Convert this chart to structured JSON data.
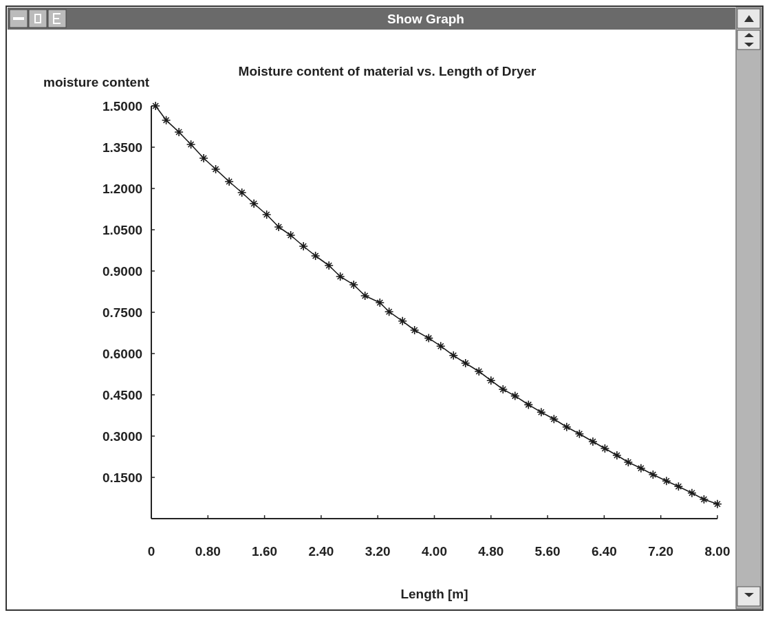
{
  "chart_data": {
    "type": "line",
    "title": "Moisture content of material vs. Length of Dryer",
    "xlabel": "Length [m]",
    "ylabel": "moisture content",
    "annotations": [
      "Show Graph"
    ],
    "x": [
      0.06,
      0.21,
      0.39,
      0.56,
      0.74,
      0.91,
      1.1,
      1.28,
      1.45,
      1.63,
      1.8,
      1.97,
      2.15,
      2.32,
      2.51,
      2.67,
      2.86,
      3.02,
      3.23,
      3.36,
      3.55,
      3.72,
      3.92,
      4.09,
      4.27,
      4.44,
      4.63,
      4.8,
      4.97,
      5.14,
      5.33,
      5.51,
      5.69,
      5.87,
      6.05,
      6.24,
      6.41,
      6.58,
      6.74,
      6.92,
      7.09,
      7.28,
      7.45,
      7.64,
      7.81,
      8.0
    ],
    "series": [
      {
        "color": "#1a1a1a",
        "values": [
          1.5,
          1.448,
          1.405,
          1.36,
          1.31,
          1.27,
          1.225,
          1.185,
          1.145,
          1.105,
          1.06,
          1.03,
          0.99,
          0.955,
          0.92,
          0.88,
          0.85,
          0.81,
          0.785,
          0.752,
          0.718,
          0.685,
          0.656,
          0.627,
          0.593,
          0.565,
          0.535,
          0.502,
          0.47,
          0.446,
          0.414,
          0.387,
          0.362,
          0.333,
          0.308,
          0.28,
          0.255,
          0.23,
          0.205,
          0.183,
          0.16,
          0.137,
          0.117,
          0.093,
          0.07,
          0.053
        ]
      }
    ],
    "xlim": [
      0,
      8
    ],
    "xticks": [
      {
        "value": 0,
        "label": "0"
      },
      {
        "value": 0.8,
        "label": "0.80"
      },
      {
        "value": 1.6,
        "label": "1.60"
      },
      {
        "value": 2.4,
        "label": "2.40"
      },
      {
        "value": 3.2,
        "label": "3.20"
      },
      {
        "value": 4,
        "label": "4.00"
      },
      {
        "value": 4.8,
        "label": "4.80"
      },
      {
        "value": 5.6,
        "label": "5.60"
      },
      {
        "value": 6.4,
        "label": "6.40"
      },
      {
        "value": 7.2,
        "label": "7.20"
      },
      {
        "value": 8,
        "label": "8.00"
      }
    ],
    "ylim": [
      0,
      1.5
    ],
    "yticks": [
      {
        "value": 0.15,
        "label": "0.1500"
      },
      {
        "value": 0.3,
        "label": "0.3000"
      },
      {
        "value": 0.45,
        "label": "0.4500"
      },
      {
        "value": 0.6,
        "label": "0.6000"
      },
      {
        "value": 0.75,
        "label": "0.7500"
      },
      {
        "value": 0.9,
        "label": "0.9000"
      },
      {
        "value": 1.05,
        "label": "1.0500"
      },
      {
        "value": 1.2,
        "label": "1.2000"
      },
      {
        "value": 1.35,
        "label": "1.3500"
      },
      {
        "value": 1.5,
        "label": "1.5000"
      }
    ],
    "marker": "cross",
    "line_style": "solid",
    "grid": false
  }
}
